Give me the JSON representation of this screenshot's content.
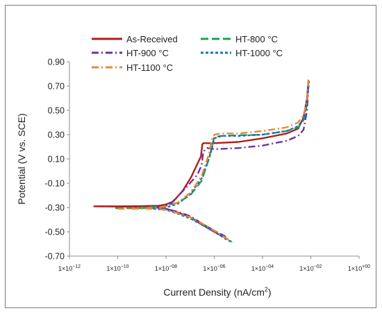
{
  "chart_data": {
    "type": "line",
    "title": "",
    "xlabel_main": "Current Density (nA/cm",
    "xlabel_sup": "2",
    "xlabel_end": ")",
    "ylabel": "Potential (V vs. SCE)",
    "x_scale": "log",
    "xlim": [
      1e-12,
      1
    ],
    "ylim": [
      -0.7,
      0.9
    ],
    "x_ticks": [
      {
        "value": 1e-12,
        "base": "1×10",
        "exp": "−12"
      },
      {
        "value": 1e-10,
        "base": "1×10",
        "exp": "−10"
      },
      {
        "value": 1e-08,
        "base": "1×10",
        "exp": "−08"
      },
      {
        "value": 1e-06,
        "base": "1×10",
        "exp": "−06"
      },
      {
        "value": 0.0001,
        "base": "1×10",
        "exp": "−04"
      },
      {
        "value": 0.01,
        "base": "1×10",
        "exp": "−02"
      },
      {
        "value": 1,
        "base": "1×10",
        "exp": "+00"
      }
    ],
    "y_ticks": [
      {
        "value": 0.9,
        "label": "0.90"
      },
      {
        "value": 0.7,
        "label": "0.70"
      },
      {
        "value": 0.5,
        "label": "0.50"
      },
      {
        "value": 0.3,
        "label": "0.30"
      },
      {
        "value": 0.1,
        "label": "0.10"
      },
      {
        "value": -0.1,
        "label": "-0.10"
      },
      {
        "value": -0.3,
        "label": "-0.30"
      },
      {
        "value": -0.5,
        "label": "-0.50"
      },
      {
        "value": -0.7,
        "label": "-0.70"
      }
    ],
    "grid": false,
    "legend_position": "top",
    "series": [
      {
        "name": "As-Received",
        "color": "#b01c1c",
        "dash": "solid",
        "anodic": [
          [
            1e-11,
            -0.29
          ],
          [
            1e-10,
            -0.29
          ],
          [
            1e-09,
            -0.288
          ],
          [
            5e-09,
            -0.285
          ],
          [
            1e-08,
            -0.275
          ],
          [
            2e-08,
            -0.25
          ],
          [
            5e-08,
            -0.16
          ],
          [
            1.1e-07,
            -0.05
          ],
          [
            2e-07,
            0.06
          ],
          [
            2.8e-07,
            0.12
          ],
          [
            3.2e-07,
            0.22
          ],
          [
            3.5e-07,
            0.23
          ],
          [
            1e-06,
            0.23
          ],
          [
            1e-05,
            0.24
          ],
          [
            0.0001,
            0.27
          ],
          [
            0.001,
            0.31
          ],
          [
            0.003,
            0.35
          ],
          [
            0.005,
            0.44
          ],
          [
            0.007,
            0.6
          ],
          [
            0.008,
            0.75
          ]
        ],
        "cathodic": [
          [
            1e-11,
            -0.29
          ],
          [
            3e-09,
            -0.295
          ],
          [
            1e-08,
            -0.31
          ],
          [
            3e-08,
            -0.34
          ],
          [
            1e-07,
            -0.38
          ],
          [
            3e-07,
            -0.44
          ],
          [
            1e-06,
            -0.5
          ],
          [
            3e-06,
            -0.55
          ]
        ]
      },
      {
        "name": "HT-800 °C",
        "color": "#1aa05a",
        "dash": "long",
        "anodic": [
          [
            8e-11,
            -0.305
          ],
          [
            1e-09,
            -0.3
          ],
          [
            5e-09,
            -0.295
          ],
          [
            1e-08,
            -0.285
          ],
          [
            3e-08,
            -0.26
          ],
          [
            1e-07,
            -0.2
          ],
          [
            3e-07,
            -0.08
          ],
          [
            6e-07,
            0.1
          ],
          [
            8e-07,
            0.2
          ],
          [
            1e-06,
            0.28
          ],
          [
            2e-06,
            0.29
          ],
          [
            1e-05,
            0.295
          ],
          [
            0.0001,
            0.3
          ],
          [
            0.001,
            0.33
          ],
          [
            0.003,
            0.36
          ],
          [
            0.005,
            0.42
          ],
          [
            0.007,
            0.55
          ],
          [
            0.008,
            0.74
          ]
        ],
        "cathodic": [
          [
            8e-11,
            -0.305
          ],
          [
            3e-09,
            -0.305
          ],
          [
            1e-08,
            -0.315
          ],
          [
            3e-08,
            -0.34
          ],
          [
            1e-07,
            -0.38
          ],
          [
            3e-07,
            -0.43
          ],
          [
            1e-06,
            -0.49
          ],
          [
            3e-06,
            -0.55
          ],
          [
            5e-06,
            -0.58
          ]
        ]
      },
      {
        "name": "HT-900 °C",
        "color": "#7030a0",
        "dash": "dashdot",
        "anodic": [
          [
            4e-09,
            -0.3
          ],
          [
            8e-09,
            -0.29
          ],
          [
            1.5e-08,
            -0.27
          ],
          [
            3e-08,
            -0.21
          ],
          [
            8e-08,
            -0.12
          ],
          [
            2e-07,
            -0.03
          ],
          [
            3e-07,
            0.05
          ],
          [
            3.5e-07,
            0.16
          ],
          [
            5e-07,
            0.19
          ],
          [
            1e-06,
            0.18
          ],
          [
            1e-05,
            0.19
          ],
          [
            0.0001,
            0.21
          ],
          [
            0.001,
            0.25
          ],
          [
            0.003,
            0.29
          ],
          [
            0.005,
            0.34
          ],
          [
            0.007,
            0.5
          ],
          [
            0.008,
            0.72
          ]
        ],
        "cathodic": [
          [
            4e-09,
            -0.3
          ],
          [
            1e-08,
            -0.31
          ],
          [
            3e-08,
            -0.335
          ],
          [
            1e-07,
            -0.37
          ],
          [
            3e-07,
            -0.43
          ],
          [
            1e-06,
            -0.49
          ],
          [
            3e-06,
            -0.54
          ]
        ]
      },
      {
        "name": "HT-1000 °C",
        "color": "#1f6fb5",
        "dash": "short",
        "anodic": [
          [
            3e-09,
            -0.31
          ],
          [
            1e-08,
            -0.3
          ],
          [
            3e-08,
            -0.27
          ],
          [
            1e-07,
            -0.19
          ],
          [
            3e-07,
            -0.06
          ],
          [
            7e-07,
            0.14
          ],
          [
            1e-06,
            0.27
          ],
          [
            2e-06,
            0.29
          ],
          [
            1e-05,
            0.29
          ],
          [
            0.0001,
            0.3
          ],
          [
            0.001,
            0.33
          ],
          [
            0.003,
            0.37
          ],
          [
            0.005,
            0.43
          ],
          [
            0.007,
            0.56
          ],
          [
            0.0085,
            0.74
          ]
        ],
        "cathodic": [
          [
            3e-09,
            -0.31
          ],
          [
            1e-08,
            -0.32
          ],
          [
            3e-08,
            -0.35
          ],
          [
            1e-07,
            -0.39
          ],
          [
            3e-07,
            -0.44
          ],
          [
            1e-06,
            -0.5
          ],
          [
            3e-06,
            -0.56
          ],
          [
            6e-06,
            -0.59
          ]
        ]
      },
      {
        "name": "HT-1100 °C",
        "color": "#e8873a",
        "dash": "dashdot",
        "anodic": [
          [
            1e-10,
            -0.31
          ],
          [
            1e-09,
            -0.305
          ],
          [
            5e-09,
            -0.3
          ],
          [
            1e-08,
            -0.29
          ],
          [
            3e-08,
            -0.26
          ],
          [
            1e-07,
            -0.18
          ],
          [
            3e-07,
            -0.04
          ],
          [
            6e-07,
            0.14
          ],
          [
            8e-07,
            0.26
          ],
          [
            1e-06,
            0.3
          ],
          [
            2e-06,
            0.31
          ],
          [
            1e-05,
            0.31
          ],
          [
            0.0001,
            0.33
          ],
          [
            0.001,
            0.36
          ],
          [
            0.003,
            0.4
          ],
          [
            0.005,
            0.46
          ],
          [
            0.007,
            0.58
          ],
          [
            0.008,
            0.76
          ]
        ],
        "cathodic": [
          [
            1e-10,
            -0.31
          ],
          [
            3e-09,
            -0.31
          ],
          [
            1e-08,
            -0.32
          ],
          [
            3e-08,
            -0.345
          ],
          [
            1e-07,
            -0.38
          ],
          [
            3e-07,
            -0.43
          ],
          [
            1e-06,
            -0.49
          ],
          [
            3e-06,
            -0.55
          ],
          [
            6e-06,
            -0.59
          ]
        ]
      }
    ]
  }
}
